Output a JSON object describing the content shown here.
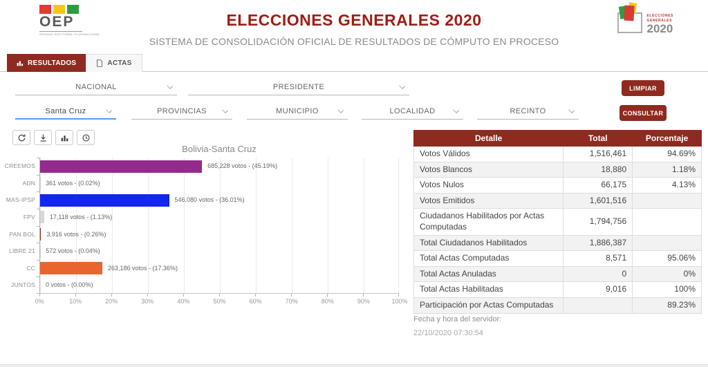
{
  "header": {
    "brand": {
      "name": "OEP",
      "sub": "ÓRGANO ELECTORAL PLURINACIONAL"
    },
    "title": "ELECCIONES GENERALES 2020",
    "subtitle": "SISTEMA DE CONSOLIDACIÓN OFICIAL DE RESULTADOS DE CÓMPUTO EN PROCESO",
    "event_logo": {
      "line1": "ELECCIONES",
      "line2": "GENERALES",
      "year": "2020"
    }
  },
  "tabs": [
    {
      "label": "RESULTADOS",
      "active": true,
      "icon": "bar-chart-icon"
    },
    {
      "label": "ACTAS",
      "active": false,
      "icon": "document-icon"
    }
  ],
  "filters": {
    "row1": [
      {
        "value": "NACIONAL"
      },
      {
        "value": "PRESIDENTE"
      }
    ],
    "row2": [
      {
        "value": "Santa Cruz",
        "active": true
      },
      {
        "value": "PROVINCIAS"
      },
      {
        "value": "MUNICIPIO"
      },
      {
        "value": "LOCALIDAD"
      },
      {
        "value": "RECINTO"
      }
    ]
  },
  "buttons": {
    "limpiar": "LIMPIAR",
    "consultar": "CONSULTAR"
  },
  "chart_toolbar": {
    "icons": [
      "refresh-icon",
      "download-icon",
      "bar-chart-icon",
      "history-icon"
    ]
  },
  "chart_data": {
    "type": "bar",
    "orientation": "horizontal",
    "title": "Bolivia-Santa Cruz",
    "categories": [
      "CREEMOS",
      "ADN",
      "MAS-IPSP",
      "FPV",
      "PAN BOL",
      "LIBRE 21",
      "CC",
      "JUNTOS"
    ],
    "values_votes": [
      685228,
      361,
      546080,
      17118,
      3916,
      572,
      263186,
      0
    ],
    "values_pct": [
      45.19,
      0.02,
      36.01,
      1.13,
      0.26,
      0.04,
      17.36,
      0.0
    ],
    "labels": [
      "685,228 votos - (45.19%)",
      "361 votos - (0.02%)",
      "546,080 votos - (36.01%)",
      "17,118 votos - (1.13%)",
      "3,916 votos - (0.26%)",
      "572 votos - (0.04%)",
      "263,186 votos - (17.36%)",
      "0 votos - (0.00%)"
    ],
    "bar_colors": [
      "#932A8E",
      "#D8D8D8",
      "#1226F0",
      "#D8D8D8",
      "#8E2A1F",
      "#D8D8D8",
      "#E8662D",
      "transparent"
    ],
    "x_ticks": [
      "0%",
      "10%",
      "20%",
      "30%",
      "40%",
      "50%",
      "60%",
      "70%",
      "80%",
      "90%",
      "100%"
    ],
    "xlim": [
      0,
      100
    ],
    "grid": true,
    "legend": false
  },
  "table": {
    "headers": [
      "Detalle",
      "Total",
      "Porcentaje"
    ],
    "rows": [
      [
        "Votos Válidos",
        "1,516,461",
        "94.69%"
      ],
      [
        "Votos Blancos",
        "18,880",
        "1.18%"
      ],
      [
        "Votos Nulos",
        "66,175",
        "4.13%"
      ],
      [
        "Votos Emitidos",
        "1,601,516",
        ""
      ],
      [
        "Ciudadanos Habilitados por Actas Computadas",
        "1,794,756",
        ""
      ],
      [
        "Total Ciudadanos Habilitados",
        "1,886,387",
        ""
      ],
      [
        "Total Actas Computadas",
        "8,571",
        "95.06%"
      ],
      [
        "Total Actas Anuladas",
        "0",
        "0%"
      ],
      [
        "Total Actas Habilitadas",
        "9,016",
        "100%"
      ],
      [
        "Participación por Actas Computadas",
        "",
        "89.23%"
      ]
    ]
  },
  "footer": {
    "server_label": "Fecha y hora del servidor:",
    "server_time": "22/10/2020 07:30:54"
  },
  "colors": {
    "primary_maroon": "#8E2A1F",
    "title_red": "#9E1C15",
    "active_underline_blue": "#54A0E8",
    "brand_red": "#E03C31",
    "brand_yellow": "#F8C51B",
    "brand_green": "#2E9B44"
  }
}
